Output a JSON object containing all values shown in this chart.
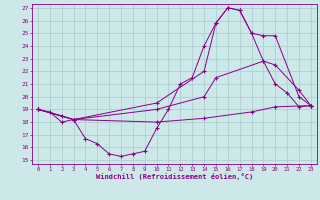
{
  "xlabel": "Windchill (Refroidissement éolien,°C)",
  "bg_color": "#cce8e8",
  "line_color": "#880088",
  "grid_color": "#aacccc",
  "xlim": [
    -0.5,
    23.5
  ],
  "ylim": [
    14.7,
    27.3
  ],
  "xticks": [
    0,
    1,
    2,
    3,
    4,
    5,
    6,
    7,
    8,
    9,
    10,
    11,
    12,
    13,
    14,
    15,
    16,
    17,
    18,
    19,
    20,
    21,
    22,
    23
  ],
  "yticks": [
    15,
    16,
    17,
    18,
    19,
    20,
    21,
    22,
    23,
    24,
    25,
    26,
    27
  ],
  "series1": [
    [
      0,
      19.0
    ],
    [
      1,
      18.8
    ],
    [
      2,
      18.0
    ],
    [
      3,
      18.2
    ],
    [
      4,
      16.7
    ],
    [
      5,
      16.3
    ],
    [
      6,
      15.5
    ],
    [
      7,
      15.3
    ],
    [
      8,
      15.5
    ],
    [
      9,
      15.7
    ],
    [
      10,
      17.5
    ],
    [
      11,
      19.0
    ],
    [
      12,
      21.0
    ],
    [
      13,
      21.5
    ],
    [
      14,
      24.0
    ],
    [
      15,
      25.8
    ],
    [
      16,
      27.0
    ],
    [
      17,
      26.8
    ],
    [
      18,
      25.0
    ],
    [
      19,
      22.8
    ],
    [
      20,
      21.0
    ],
    [
      21,
      20.3
    ],
    [
      22,
      19.2
    ],
    [
      23,
      19.3
    ]
  ],
  "series2": [
    [
      0,
      19.0
    ],
    [
      2,
      18.5
    ],
    [
      3,
      18.2
    ],
    [
      10,
      18.0
    ],
    [
      14,
      18.3
    ],
    [
      18,
      18.8
    ],
    [
      20,
      19.2
    ],
    [
      23,
      19.3
    ]
  ],
  "series3": [
    [
      0,
      19.0
    ],
    [
      3,
      18.2
    ],
    [
      10,
      19.0
    ],
    [
      14,
      20.0
    ],
    [
      15,
      21.5
    ],
    [
      19,
      22.8
    ],
    [
      20,
      22.5
    ],
    [
      22,
      20.5
    ],
    [
      23,
      19.3
    ]
  ],
  "series4": [
    [
      0,
      19.0
    ],
    [
      3,
      18.2
    ],
    [
      10,
      19.5
    ],
    [
      14,
      22.0
    ],
    [
      15,
      25.8
    ],
    [
      16,
      27.0
    ],
    [
      17,
      26.8
    ],
    [
      18,
      25.0
    ],
    [
      19,
      24.8
    ],
    [
      20,
      24.8
    ],
    [
      22,
      20.0
    ],
    [
      23,
      19.3
    ]
  ]
}
